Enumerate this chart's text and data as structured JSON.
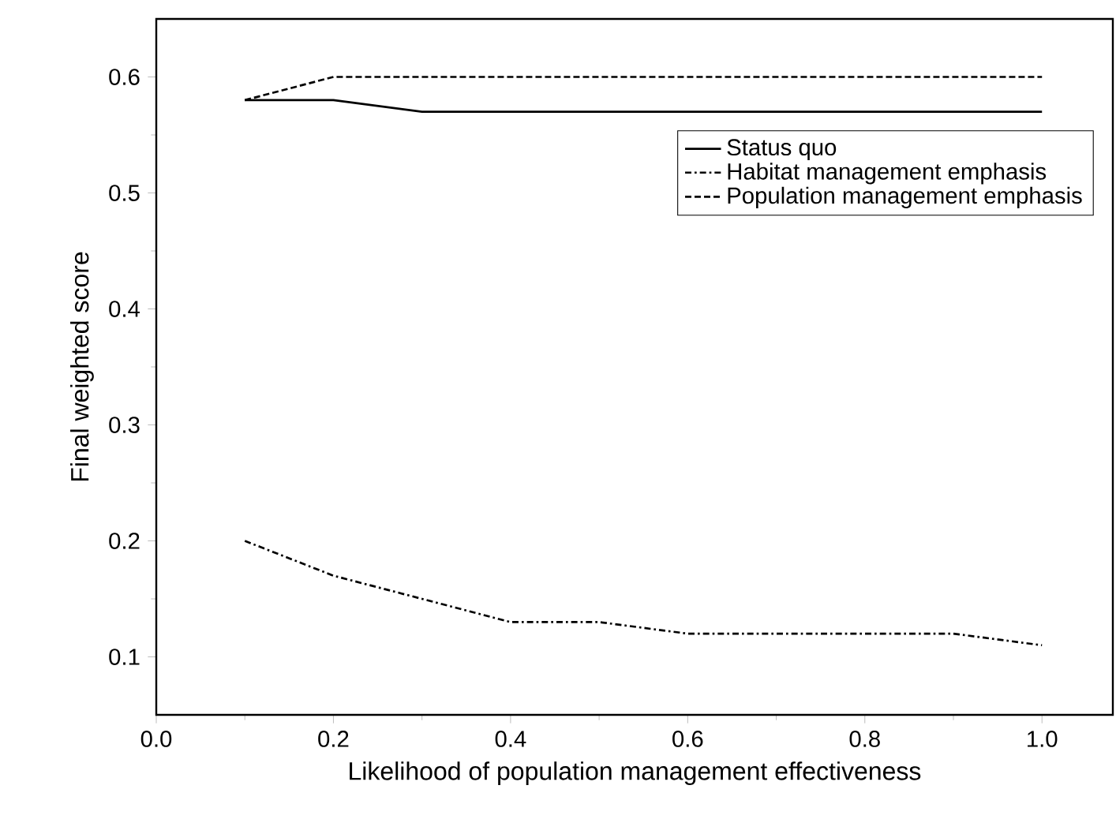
{
  "chart_data": {
    "type": "line",
    "xlabel": "Likelihood of population management effectiveness",
    "ylabel": "Final weighted score",
    "x": [
      0.1,
      0.2,
      0.3,
      0.4,
      0.5,
      0.6,
      0.7,
      0.8,
      0.9,
      1.0
    ],
    "series": [
      {
        "name": "Status quo",
        "color": "#000000",
        "line_style": "solid",
        "values": [
          0.58,
          0.58,
          0.57,
          0.57,
          0.57,
          0.57,
          0.57,
          0.57,
          0.57,
          0.57
        ]
      },
      {
        "name": "Habitat management emphasis",
        "color": "#000000",
        "line_style": "dashdot",
        "values": [
          0.2,
          0.17,
          0.15,
          0.13,
          0.13,
          0.12,
          0.12,
          0.12,
          0.12,
          0.11
        ]
      },
      {
        "name": "Population management emphasis",
        "color": "#000000",
        "line_style": "dashed",
        "values": [
          0.58,
          0.6,
          0.6,
          0.6,
          0.6,
          0.6,
          0.6,
          0.6,
          0.6,
          0.6
        ]
      }
    ],
    "xlim": [
      0,
      1.08
    ],
    "ylim": [
      0.05,
      0.65
    ],
    "xticks": [
      {
        "value": 0,
        "label": "0.0"
      },
      0.2,
      0.4,
      0.6,
      0.8,
      {
        "value": 1,
        "label": "1.0"
      }
    ],
    "yticks": [
      0.1,
      0.2,
      0.3,
      0.4,
      0.5,
      0.6
    ],
    "grid": false,
    "legend": "top right",
    "marker": "none"
  }
}
